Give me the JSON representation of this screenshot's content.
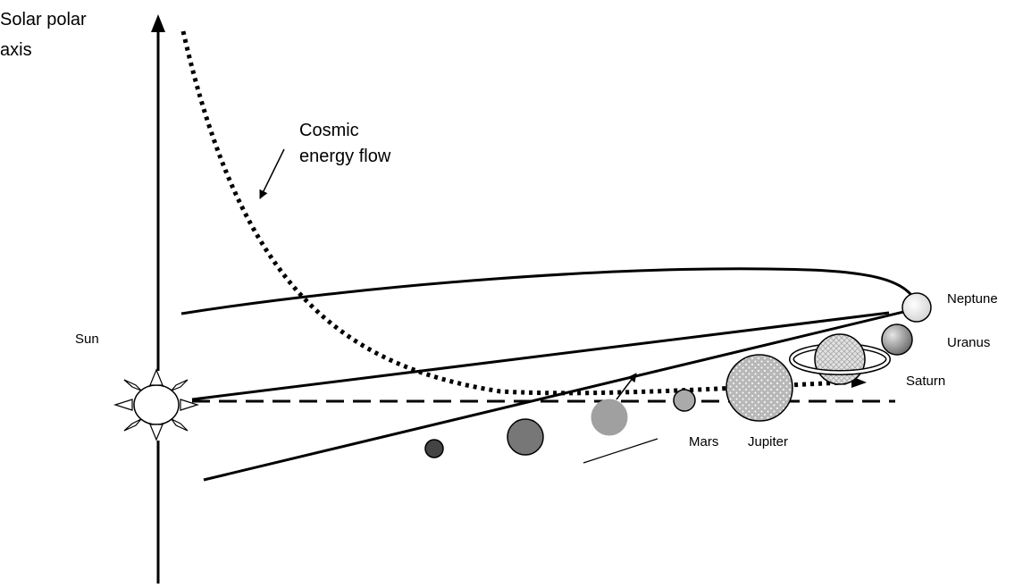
{
  "diagram": {
    "axis_label_line1": "Solar polar",
    "axis_label_line2": "axis",
    "flow_label_line1": "Cosmic",
    "flow_label_line2": "energy flow",
    "sun_label": "Sun",
    "planet_labels": {
      "mars": "Mars",
      "jupiter": "Jupiter",
      "saturn": "Saturn",
      "uranus": "Uranus",
      "neptune": "Neptune"
    }
  },
  "colors": {
    "ink": "#000000",
    "background": "#ffffff",
    "mercury": "#444444",
    "venus": "#777777",
    "earth": "#a0a0a0",
    "mars": "#aaaaaa",
    "jupiter": "#b8b8b8",
    "saturn": "#d8d8d8",
    "uranus": "#8a8a8a",
    "neptune": "#eeeeee"
  }
}
